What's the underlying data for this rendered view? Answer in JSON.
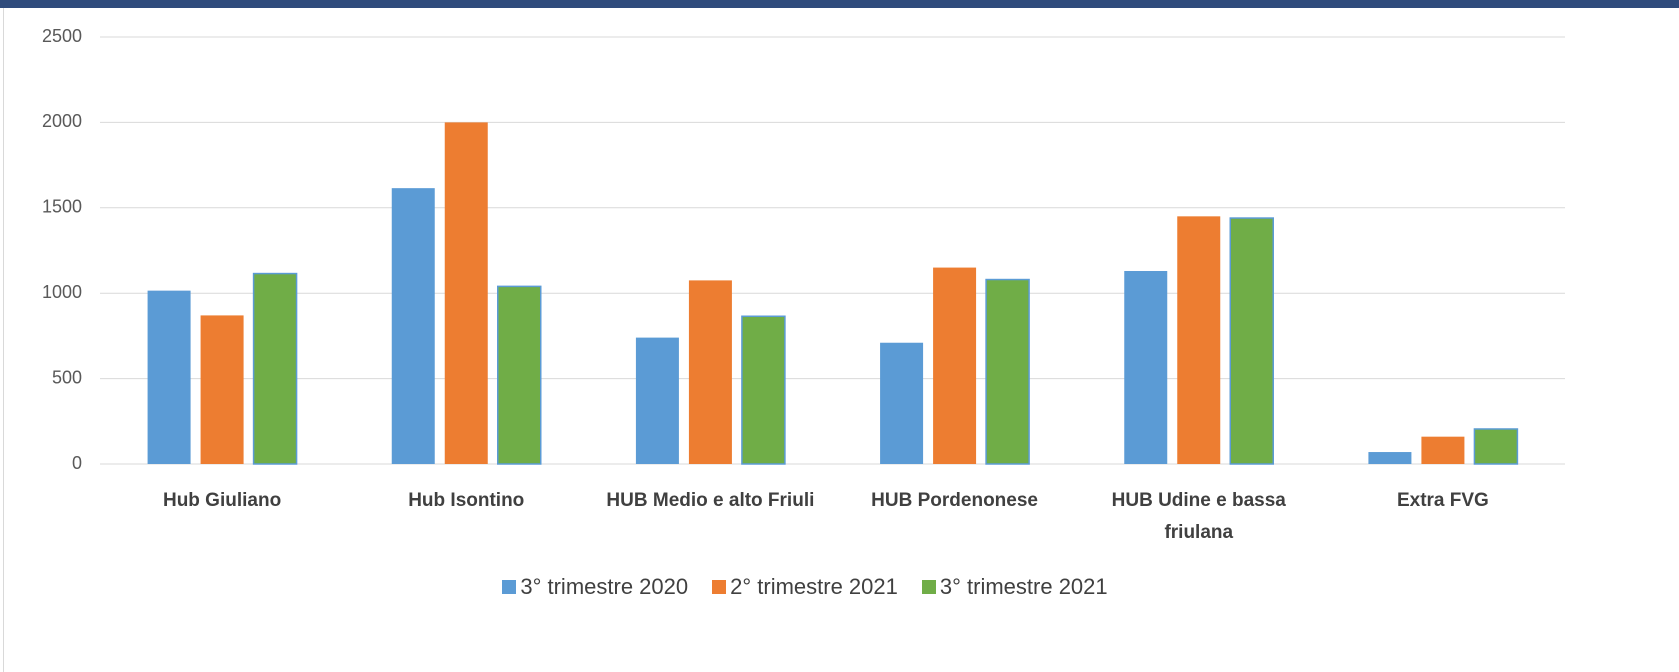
{
  "chart_data": {
    "type": "bar",
    "categories": [
      "Hub Giuliano",
      "Hub Isontino",
      "HUB Medio e alto Friuli",
      "HUB Pordenonese",
      "HUB Udine e bassa friulana",
      "Extra FVG"
    ],
    "series": [
      {
        "name": "3° trimestre 2020",
        "color": "#5b9bd5",
        "values": [
          1015,
          1615,
          740,
          710,
          1130,
          70
        ]
      },
      {
        "name": "2° trimestre 2021",
        "color": "#ed7d31",
        "values": [
          870,
          2000,
          1075,
          1150,
          1450,
          160
        ]
      },
      {
        "name": "3° trimestre 2021",
        "color": "#70ad47",
        "values": [
          1115,
          1040,
          865,
          1080,
          1440,
          205
        ]
      }
    ],
    "ylim": [
      0,
      2500
    ],
    "yticks": [
      0,
      500,
      1000,
      1500,
      2000,
      2500
    ],
    "grid": true,
    "legend": "bottom"
  }
}
